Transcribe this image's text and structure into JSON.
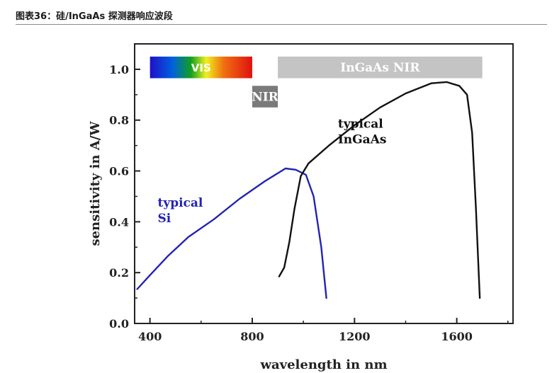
{
  "caption": {
    "figure_no": "图表36：",
    "title": "硅/InGaAs 探测器响应波段"
  },
  "colors": {
    "si": "#2323b4",
    "ingaas": "#111111",
    "band_light": "#c4c4c4",
    "band_dark": "#7a7a7a"
  },
  "chart_data": {
    "type": "line",
    "xlabel": "wavelength in nm",
    "ylabel": "sensitivity in A/W",
    "xlim": [
      340,
      1820
    ],
    "ylim": [
      0,
      1.1
    ],
    "xticks": [
      400,
      800,
      1200,
      1600
    ],
    "yticks": [
      0.0,
      0.2,
      0.4,
      0.6,
      0.8,
      1.0
    ],
    "ytick_labels": [
      "0.0",
      "0.2",
      "0.4",
      "0.6",
      "0.8",
      "1.0"
    ],
    "grid": false,
    "series": [
      {
        "name": "typical Si",
        "label_lines": [
          "typical",
          "Si"
        ],
        "label_at": [
          430,
          0.46
        ],
        "points": [
          [
            350,
            0.135
          ],
          [
            400,
            0.19
          ],
          [
            470,
            0.265
          ],
          [
            550,
            0.34
          ],
          [
            650,
            0.41
          ],
          [
            750,
            0.49
          ],
          [
            850,
            0.56
          ],
          [
            930,
            0.61
          ],
          [
            970,
            0.605
          ],
          [
            1010,
            0.585
          ],
          [
            1040,
            0.5
          ],
          [
            1070,
            0.3
          ],
          [
            1090,
            0.1
          ]
        ]
      },
      {
        "name": "typical InGaAs",
        "label_lines": [
          "typical",
          "InGaAs"
        ],
        "label_at": [
          1135,
          0.77
        ],
        "points": [
          [
            905,
            0.185
          ],
          [
            925,
            0.22
          ],
          [
            945,
            0.32
          ],
          [
            965,
            0.45
          ],
          [
            990,
            0.58
          ],
          [
            1020,
            0.63
          ],
          [
            1100,
            0.7
          ],
          [
            1200,
            0.78
          ],
          [
            1300,
            0.85
          ],
          [
            1400,
            0.905
          ],
          [
            1500,
            0.945
          ],
          [
            1560,
            0.95
          ],
          [
            1610,
            0.935
          ],
          [
            1640,
            0.9
          ],
          [
            1660,
            0.75
          ],
          [
            1675,
            0.45
          ],
          [
            1690,
            0.1
          ]
        ]
      }
    ],
    "bands": [
      {
        "label": "VIS",
        "x0": 400,
        "x1": 800,
        "y0": 0.965,
        "y1": 1.05,
        "fill": "spectrum"
      },
      {
        "label": "InGaAs NIR",
        "x0": 900,
        "x1": 1700,
        "y0": 0.965,
        "y1": 1.05,
        "fill": "light"
      },
      {
        "label": "NIR",
        "x0": 800,
        "x1": 900,
        "y0": 0.85,
        "y1": 0.935,
        "fill": "dark"
      }
    ]
  }
}
